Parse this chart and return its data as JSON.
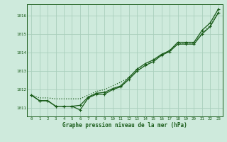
{
  "background_color": "#ceeadc",
  "grid_color": "#aacfbc",
  "line_color": "#1a5c1a",
  "title": "Graphe pression niveau de la mer (hPa)",
  "ylabel_ticks": [
    1011,
    1012,
    1013,
    1014,
    1015,
    1016
  ],
  "xlim": [
    -0.5,
    23.5
  ],
  "ylim": [
    1010.55,
    1016.6
  ],
  "x_hours": [
    0,
    1,
    2,
    3,
    4,
    5,
    6,
    7,
    8,
    9,
    10,
    11,
    12,
    13,
    14,
    15,
    16,
    17,
    18,
    19,
    20,
    21,
    22,
    23
  ],
  "line_smooth": [
    1011.7,
    1011.55,
    1011.55,
    1011.5,
    1011.5,
    1011.5,
    1011.5,
    1011.7,
    1011.9,
    1012.0,
    1012.2,
    1012.4,
    1012.65,
    1013.0,
    1013.3,
    1013.55,
    1013.85,
    1014.1,
    1014.45,
    1014.5,
    1014.5,
    1015.05,
    1015.45,
    1016.2
  ],
  "line_dip": [
    1011.7,
    1011.4,
    1011.4,
    1011.1,
    1011.1,
    1011.1,
    1010.9,
    1011.55,
    1011.75,
    1011.75,
    1012.0,
    1012.15,
    1012.55,
    1013.0,
    1013.3,
    1013.5,
    1013.85,
    1014.05,
    1014.45,
    1014.45,
    1014.45,
    1015.0,
    1015.4,
    1016.15
  ],
  "line_dip2": [
    1011.7,
    1011.4,
    1011.4,
    1011.1,
    1011.1,
    1011.1,
    1011.15,
    1011.6,
    1011.8,
    1011.85,
    1012.05,
    1012.2,
    1012.65,
    1013.1,
    1013.4,
    1013.6,
    1013.9,
    1014.1,
    1014.55,
    1014.55,
    1014.55,
    1015.2,
    1015.6,
    1016.35
  ]
}
